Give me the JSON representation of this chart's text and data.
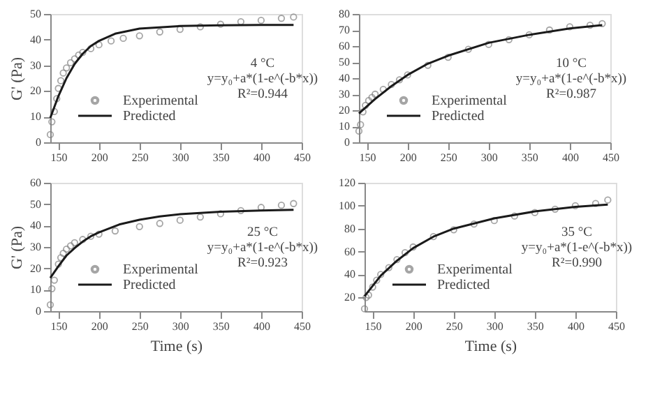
{
  "chart_data": [
    {
      "type": "line",
      "ylabel": "G' (Pa)",
      "xlim": [
        140,
        450
      ],
      "xticks": [
        150,
        200,
        250,
        300,
        350,
        400,
        450
      ],
      "ylim": [
        0,
        50
      ],
      "yticks": [
        0,
        10,
        20,
        30,
        40,
        50
      ],
      "grid": false,
      "legend": "bottom left",
      "annotations": [
        "4 °C",
        "y=y₀+a*(1-e^(-b*x))",
        "R²=0.944"
      ],
      "series": [
        {
          "name": "Experimental",
          "type": "scatter",
          "marker": "circle",
          "color": "#808080",
          "x": [
            140,
            142,
            145,
            148,
            150,
            153,
            156,
            160,
            165,
            170,
            175,
            180,
            190,
            200,
            215,
            230,
            250,
            275,
            300,
            325,
            350,
            375,
            400,
            425,
            440
          ],
          "values": [
            3,
            8,
            12,
            17,
            21,
            24,
            27,
            29,
            31,
            32.5,
            34,
            35,
            36.5,
            38,
            39.5,
            40.5,
            41.5,
            43,
            44,
            45,
            46,
            47,
            47.5,
            48.3,
            48.8
          ]
        },
        {
          "name": "Predicted",
          "line_style": "solid",
          "color": "#1a1a1a",
          "x": [
            140,
            150,
            160,
            170,
            180,
            190,
            200,
            220,
            250,
            300,
            350,
            400,
            440
          ],
          "values": [
            9.5,
            18,
            25,
            30.5,
            34.5,
            37.5,
            39.5,
            42.3,
            44.3,
            45.3,
            45.6,
            45.7,
            45.7
          ]
        }
      ]
    },
    {
      "type": "line",
      "xlim": [
        140,
        450
      ],
      "xticks": [
        150,
        200,
        250,
        300,
        350,
        400,
        450
      ],
      "ylim": [
        0,
        80
      ],
      "yticks": [
        0,
        10,
        20,
        30,
        40,
        50,
        60,
        70,
        80
      ],
      "grid": false,
      "legend": "bottom left",
      "annotations": [
        "10 °C",
        "y=y₀+a*(1-e^(-b*x))",
        "R²=0.987"
      ],
      "series": [
        {
          "name": "Experimental",
          "type": "scatter",
          "marker": "circle",
          "color": "#808080",
          "x": [
            140,
            142,
            145,
            148,
            152,
            156,
            160,
            170,
            180,
            190,
            200,
            225,
            250,
            275,
            300,
            325,
            350,
            375,
            400,
            425,
            440
          ],
          "values": [
            7,
            11,
            19,
            23,
            26,
            28,
            30,
            33,
            36,
            39,
            42,
            48,
            53,
            58,
            61,
            64,
            67,
            70,
            72,
            73,
            74
          ]
        },
        {
          "name": "Predicted",
          "line_style": "solid",
          "color": "#1a1a1a",
          "x": [
            140,
            160,
            180,
            200,
            225,
            250,
            300,
            350,
            400,
            440
          ],
          "values": [
            18,
            27,
            35,
            42,
            49,
            54,
            62,
            67,
            71,
            73
          ]
        }
      ]
    },
    {
      "type": "line",
      "xlabel": "Time (s)",
      "ylabel": "G' (Pa)",
      "xlim": [
        140,
        450
      ],
      "xticks": [
        150,
        200,
        250,
        300,
        350,
        400,
        450
      ],
      "ylim": [
        0,
        60
      ],
      "yticks": [
        0,
        10,
        20,
        30,
        40,
        50,
        60
      ],
      "grid": false,
      "legend": "bottom left",
      "annotations": [
        "25 °C",
        "y=y₀+a*(1-e^(-b*x))",
        "R²=0.923"
      ],
      "series": [
        {
          "name": "Experimental",
          "type": "scatter",
          "marker": "circle",
          "color": "#808080",
          "x": [
            140,
            142,
            145,
            150,
            153,
            156,
            160,
            165,
            170,
            180,
            190,
            200,
            220,
            250,
            275,
            300,
            325,
            350,
            375,
            400,
            425,
            440
          ],
          "values": [
            3,
            10.5,
            14.5,
            22,
            25,
            27,
            29,
            30.5,
            32,
            33.5,
            35,
            36,
            37.5,
            39.5,
            41,
            42.5,
            44,
            45.5,
            47,
            48.5,
            49.5,
            50.3
          ]
        },
        {
          "name": "Predicted",
          "line_style": "solid",
          "color": "#1a1a1a",
          "x": [
            140,
            150,
            160,
            170,
            180,
            190,
            200,
            225,
            250,
            275,
            300,
            350,
            400,
            440
          ],
          "values": [
            15.5,
            21,
            26,
            29.5,
            32.5,
            35,
            36.8,
            40.5,
            42.7,
            44.3,
            45.3,
            46.5,
            47,
            47.4
          ]
        }
      ]
    },
    {
      "type": "line",
      "xlabel": "Time (s)",
      "xlim": [
        140,
        450
      ],
      "xticks": [
        150,
        200,
        250,
        300,
        350,
        400,
        450
      ],
      "ylim": [
        8,
        120
      ],
      "yticks": [
        20,
        40,
        60,
        80,
        100,
        120
      ],
      "grid": false,
      "legend": "bottom left",
      "annotations": [
        "35 °C",
        "y=y₀+a*(1-e^(-b*x))",
        "R²=0.990"
      ],
      "series": [
        {
          "name": "Experimental",
          "type": "scatter",
          "marker": "circle",
          "color": "#808080",
          "x": [
            140,
            142,
            145,
            150,
            155,
            160,
            170,
            180,
            190,
            200,
            225,
            250,
            275,
            300,
            325,
            350,
            375,
            400,
            425,
            440
          ],
          "values": [
            10,
            20,
            22,
            29,
            35,
            40,
            46,
            53,
            59,
            64,
            73,
            79,
            84,
            87,
            91,
            94,
            97,
            100,
            102,
            105
          ]
        },
        {
          "name": "Predicted",
          "line_style": "solid",
          "color": "#1a1a1a",
          "x": [
            140,
            150,
            160,
            180,
            200,
            225,
            250,
            300,
            350,
            400,
            440
          ],
          "values": [
            21,
            30,
            39,
            52,
            63,
            73,
            80,
            89,
            95,
            99,
            101
          ]
        }
      ]
    }
  ]
}
